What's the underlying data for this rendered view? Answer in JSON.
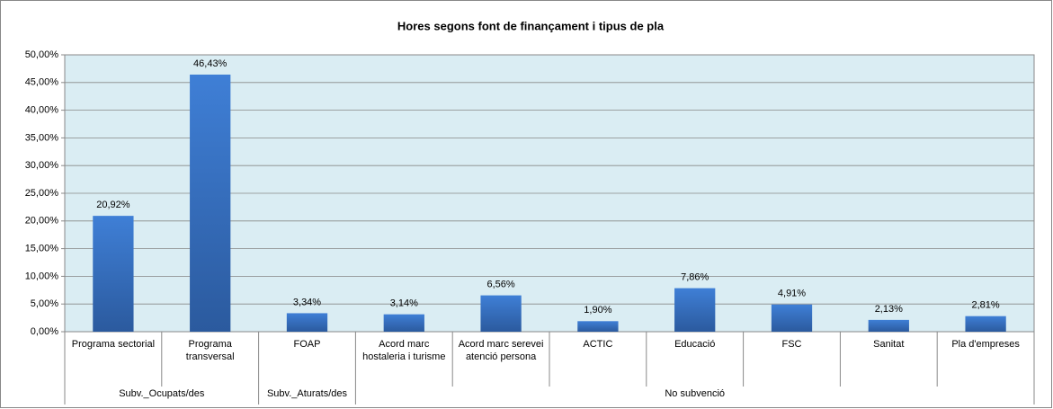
{
  "chart_data": {
    "type": "bar",
    "title": "Hores segons font de finançament i tipus de pla",
    "color": "#3a73c4",
    "grid": true,
    "ylim": [
      0,
      50
    ],
    "yticks": [
      {
        "value": 0,
        "label": "0,00%"
      },
      {
        "value": 5,
        "label": "5,00%"
      },
      {
        "value": 10,
        "label": "10,00%"
      },
      {
        "value": 15,
        "label": "15,00%"
      },
      {
        "value": 20,
        "label": "20,00%"
      },
      {
        "value": 25,
        "label": "25,00%"
      },
      {
        "value": 30,
        "label": "30,00%"
      },
      {
        "value": 35,
        "label": "35,00%"
      },
      {
        "value": 40,
        "label": "40,00%"
      },
      {
        "value": 45,
        "label": "45,00%"
      },
      {
        "value": 50,
        "label": "50,00%"
      }
    ],
    "groups": [
      {
        "name": "Subv._Ocupats/des",
        "categories": [
          "Programa sectorial",
          "Programa transversal"
        ],
        "values": [
          20.92,
          46.43
        ],
        "value_labels": [
          "20,92%",
          "46,43%"
        ]
      },
      {
        "name": "Subv._Aturats/des",
        "categories": [
          "FOAP"
        ],
        "values": [
          3.34
        ],
        "value_labels": [
          "3,34%"
        ]
      },
      {
        "name": "No subvenció",
        "categories": [
          "Acord marc hostaleria i turisme",
          "Acord marc serevei atenció persona",
          "ACTIC",
          "Educació",
          "FSC",
          "Sanitat",
          "Pla d'empreses"
        ],
        "values": [
          3.14,
          6.56,
          1.9,
          7.86,
          4.91,
          2.13,
          2.81
        ],
        "value_labels": [
          "3,14%",
          "6,56%",
          "1,90%",
          "7,86%",
          "4,91%",
          "2,13%",
          "2,81%"
        ]
      }
    ]
  }
}
